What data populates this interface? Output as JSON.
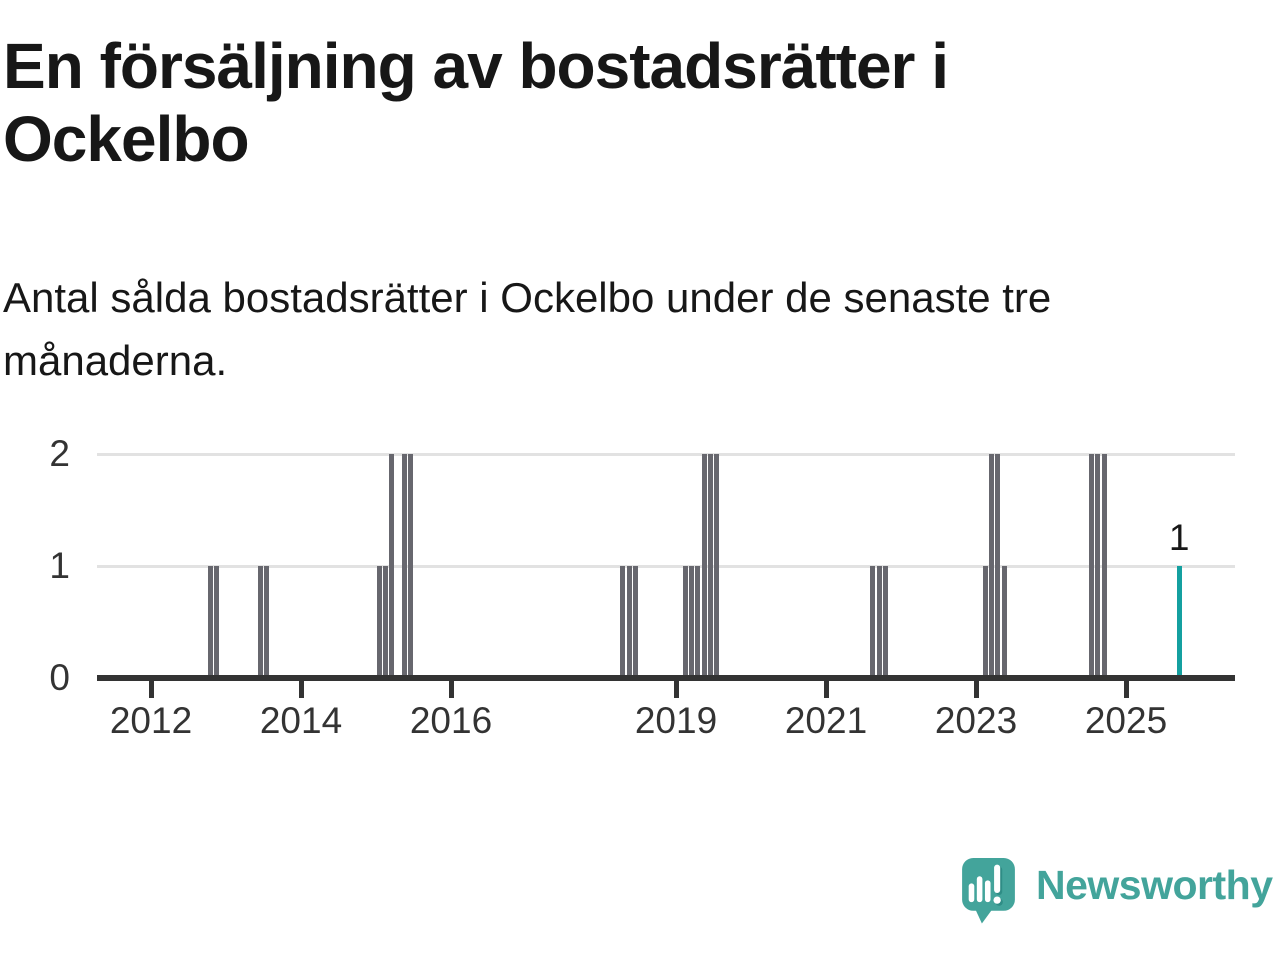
{
  "header": {
    "title_lines": [
      "En försäljning av bostadsrätter i",
      "Ockelbo"
    ],
    "subtitle_lines": [
      "Antal sålda bostadsrätter i Ockelbo under de senaste tre",
      "månaderna."
    ]
  },
  "branding": {
    "name": "Newsworthy",
    "icon": "newsworthy-speech-bubble-chart-icon",
    "color": "#43a49b"
  },
  "chart_data": {
    "type": "bar",
    "title": "En försäljning av bostadsrätter i Ockelbo",
    "xlabel": "",
    "ylabel": "",
    "x_unit": "month",
    "x_start_year": 2012,
    "x_tick_years": [
      2012,
      2014,
      2016,
      2019,
      2021,
      2023,
      2025
    ],
    "y_ticks": [
      0,
      1,
      2
    ],
    "ylim": [
      0,
      2
    ],
    "grid": "horizontal",
    "legend": "none",
    "colors": {
      "bar": "#67676e",
      "highlight": "#14a0a0",
      "axis": "#333333",
      "gridline": "#e2e2e2"
    },
    "bars": [
      {
        "month": "2012-10",
        "value": 1
      },
      {
        "month": "2012-11",
        "value": 1
      },
      {
        "month": "2013-06",
        "value": 1
      },
      {
        "month": "2013-07",
        "value": 1
      },
      {
        "month": "2015-01",
        "value": 1
      },
      {
        "month": "2015-02",
        "value": 1
      },
      {
        "month": "2015-03",
        "value": 2
      },
      {
        "month": "2015-05",
        "value": 2
      },
      {
        "month": "2015-06",
        "value": 2
      },
      {
        "month": "2018-04",
        "value": 1
      },
      {
        "month": "2018-05",
        "value": 1
      },
      {
        "month": "2018-06",
        "value": 1
      },
      {
        "month": "2019-02",
        "value": 1
      },
      {
        "month": "2019-03",
        "value": 1
      },
      {
        "month": "2019-04",
        "value": 1
      },
      {
        "month": "2019-05",
        "value": 2
      },
      {
        "month": "2019-06",
        "value": 2
      },
      {
        "month": "2019-07",
        "value": 2
      },
      {
        "month": "2021-08",
        "value": 1
      },
      {
        "month": "2021-09",
        "value": 1
      },
      {
        "month": "2021-10",
        "value": 1
      },
      {
        "month": "2023-02",
        "value": 1
      },
      {
        "month": "2023-03",
        "value": 2
      },
      {
        "month": "2023-04",
        "value": 2
      },
      {
        "month": "2023-05",
        "value": 1
      },
      {
        "month": "2024-07",
        "value": 2
      },
      {
        "month": "2024-08",
        "value": 2
      },
      {
        "month": "2024-09",
        "value": 2
      },
      {
        "month": "2025-09",
        "value": 1,
        "highlight": true,
        "label": "1"
      }
    ]
  }
}
